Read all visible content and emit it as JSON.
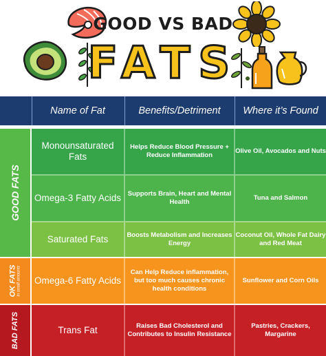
{
  "header": {
    "title_top": "GOOD VS BAD",
    "title_big": "FATS"
  },
  "table": {
    "columns": [
      "Name of Fat",
      "Benefits/Detriment",
      "Where it’s Found"
    ],
    "groups": [
      {
        "label": "GOOD FATS",
        "sublabel": "",
        "color": "#57b947"
      },
      {
        "label": "OK FATS",
        "sublabel": "in small amounts",
        "color": "#f48a1e"
      },
      {
        "label": "BAD FATS",
        "sublabel": "",
        "color": "#b5181f"
      }
    ],
    "rows": [
      {
        "name": "Monounsaturated Fats",
        "benefit": "Helps Reduce Blood Pressure + Reduce Inflammation",
        "where": "Olive Oil, Avocados and Nuts",
        "color": "#36a54a"
      },
      {
        "name": "Omega-3 Fatty Acids",
        "benefit": "Supports Brain, Heart and Mental Health",
        "where": "Tuna and Salmon",
        "color": "#4cb44a"
      },
      {
        "name": "Saturated Fats",
        "benefit": "Boosts Metabolism and Increases Energy",
        "where": "Coconut Oil, Whole Fat Dairy and Red Meat",
        "color": "#7cc144"
      },
      {
        "name": "Omega-6 Fatty Acids",
        "benefit": "Can Help Reduce inflammation, but too much causes chronic health conditions",
        "where": "Sunflower and Corn Oils",
        "color": "#f7941d"
      },
      {
        "name": "Trans Fat",
        "benefit": "Raises Bad Cholesterol and Contributes to Insulin Resistance",
        "where": "Pastries, Crackers, Margarine",
        "color": "#c52026"
      }
    ],
    "header_color": "#1c3b6e"
  }
}
